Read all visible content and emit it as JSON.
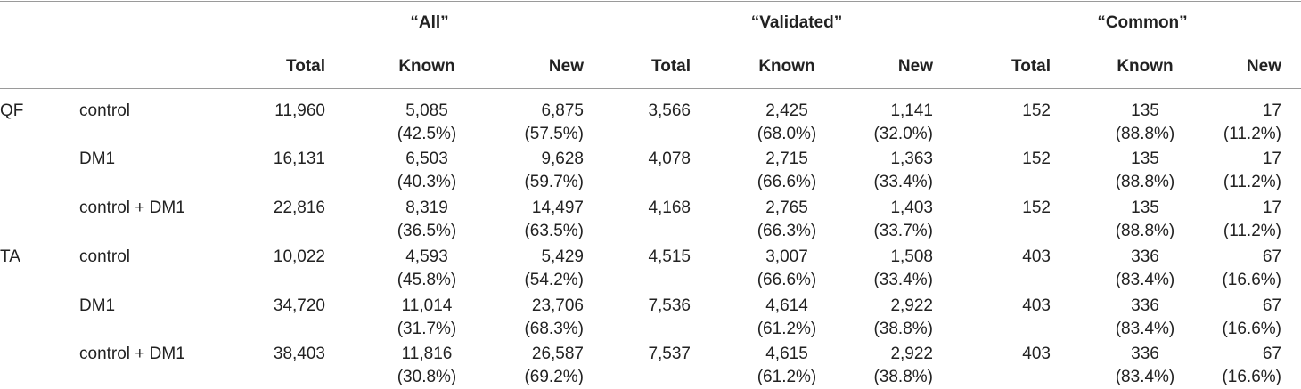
{
  "groups": [
    {
      "label": "“All”",
      "columns": [
        "Total",
        "Known",
        "New"
      ]
    },
    {
      "label": "“Validated”",
      "columns": [
        "Total",
        "Known",
        "New"
      ]
    },
    {
      "label": "“Common”",
      "columns": [
        "Total",
        "Known",
        "New"
      ]
    }
  ],
  "rows": [
    {
      "tissue": "QF",
      "condition": "control",
      "all": {
        "total": "11,960",
        "known": "5,085",
        "known_pct": "(42.5%)",
        "new": "6,875",
        "new_pct": "(57.5%)"
      },
      "validated": {
        "total": "3,566",
        "known": "2,425",
        "known_pct": "(68.0%)",
        "new": "1,141",
        "new_pct": "(32.0%)"
      },
      "common": {
        "total": "152",
        "known": "135",
        "known_pct": "(88.8%)",
        "new": "17",
        "new_pct": "(11.2%)"
      }
    },
    {
      "tissue": "",
      "condition": "DM1",
      "all": {
        "total": "16,131",
        "known": "6,503",
        "known_pct": "(40.3%)",
        "new": "9,628",
        "new_pct": "(59.7%)"
      },
      "validated": {
        "total": "4,078",
        "known": "2,715",
        "known_pct": "(66.6%)",
        "new": "1,363",
        "new_pct": "(33.4%)"
      },
      "common": {
        "total": "152",
        "known": "135",
        "known_pct": "(88.8%)",
        "new": "17",
        "new_pct": "(11.2%)"
      }
    },
    {
      "tissue": "",
      "condition": "control + DM1",
      "all": {
        "total": "22,816",
        "known": "8,319",
        "known_pct": "(36.5%)",
        "new": "14,497",
        "new_pct": "(63.5%)"
      },
      "validated": {
        "total": "4,168",
        "known": "2,765",
        "known_pct": "(66.3%)",
        "new": "1,403",
        "new_pct": "(33.7%)"
      },
      "common": {
        "total": "152",
        "known": "135",
        "known_pct": "(88.8%)",
        "new": "17",
        "new_pct": "(11.2%)"
      }
    },
    {
      "tissue": "TA",
      "condition": "control",
      "all": {
        "total": "10,022",
        "known": "4,593",
        "known_pct": "(45.8%)",
        "new": "5,429",
        "new_pct": "(54.2%)"
      },
      "validated": {
        "total": "4,515",
        "known": "3,007",
        "known_pct": "(66.6%)",
        "new": "1,508",
        "new_pct": "(33.4%)"
      },
      "common": {
        "total": "403",
        "known": "336",
        "known_pct": "(83.4%)",
        "new": "67",
        "new_pct": "(16.6%)"
      }
    },
    {
      "tissue": "",
      "condition": "DM1",
      "all": {
        "total": "34,720",
        "known": "11,014",
        "known_pct": "(31.7%)",
        "new": "23,706",
        "new_pct": "(68.3%)"
      },
      "validated": {
        "total": "7,536",
        "known": "4,614",
        "known_pct": "(61.2%)",
        "new": "2,922",
        "new_pct": "(38.8%)"
      },
      "common": {
        "total": "403",
        "known": "336",
        "known_pct": "(83.4%)",
        "new": "67",
        "new_pct": "(16.6%)"
      }
    },
    {
      "tissue": "",
      "condition": "control + DM1",
      "all": {
        "total": "38,403",
        "known": "11,816",
        "known_pct": "(30.8%)",
        "new": "26,587",
        "new_pct": "(69.2%)"
      },
      "validated": {
        "total": "7,537",
        "known": "4,615",
        "known_pct": "(61.2%)",
        "new": "2,922",
        "new_pct": "(38.8%)"
      },
      "common": {
        "total": "403",
        "known": "336",
        "known_pct": "(83.4%)",
        "new": "67",
        "new_pct": "(16.6%)"
      }
    }
  ]
}
